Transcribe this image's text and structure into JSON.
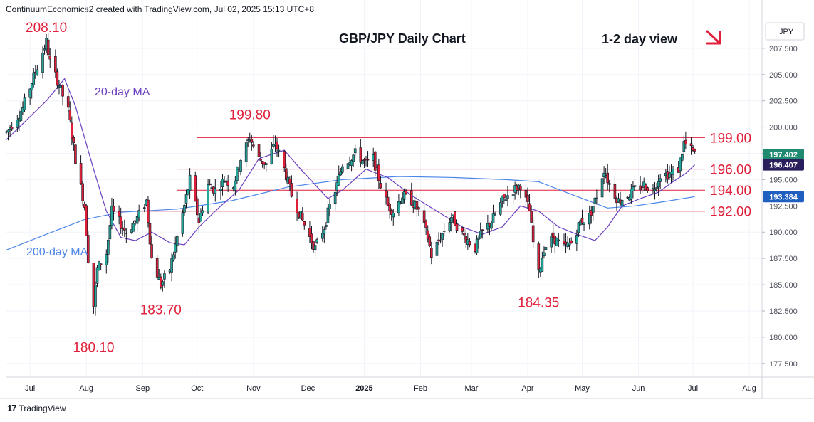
{
  "header": {
    "attribution": "ContinuumEconomics2 created with TradingView.com, Jul 02, 2025 15:13 UTC+8"
  },
  "footer": {
    "brand": "TradingView",
    "logo_text": "17"
  },
  "colors": {
    "up": "#26a69a",
    "down": "#e0203a",
    "candle": "#131722",
    "ma20": "#6b3fc0",
    "ma200": "#4a86e8",
    "level_line": "#e0203a",
    "annotation": "#e0203a",
    "grid": "#f0f3fa"
  },
  "chart_data": {
    "type": "candlestick",
    "title": "GBP/JPY Daily Chart",
    "subtitle": "1-2 day view",
    "direction_icon": "arrow-down-right-icon",
    "currency_label": "JPY",
    "x_tick_labels": [
      "Jul",
      "Aug",
      "Sep",
      "Oct",
      "Nov",
      "Dec",
      "2025",
      "Feb",
      "Mar",
      "Apr",
      "May",
      "Jun",
      "Jul",
      "Aug"
    ],
    "x_tick_dates": [
      "2024-07-01",
      "2024-08-01",
      "2024-09-01",
      "2024-10-01",
      "2024-11-01",
      "2024-12-01",
      "2025-01-01",
      "2025-02-01",
      "2025-03-01",
      "2025-04-01",
      "2025-05-01",
      "2025-06-01",
      "2025-07-01",
      "2025-08-01"
    ],
    "x_range": [
      "2024-06-18",
      "2025-08-08"
    ],
    "y_ticks": [
      "177.500",
      "180.000",
      "182.500",
      "185.000",
      "187.500",
      "190.000",
      "192.500",
      "195.000",
      "197.500",
      "200.000",
      "202.500",
      "205.000",
      "207.500"
    ],
    "y_range": [
      176.2,
      210.2
    ],
    "price_tags": [
      {
        "value": 197.402,
        "label": "197.402",
        "color": "#1f8a70"
      },
      {
        "value": 196.407,
        "label": "196.407",
        "color": "#2a1f5c"
      },
      {
        "value": 193.384,
        "label": "193.384",
        "color": "#1f5fbf"
      }
    ],
    "levels": [
      {
        "value": 199.0,
        "label": "199.00",
        "start": "2024-10-01"
      },
      {
        "value": 196.0,
        "label": "196.00",
        "start": "2024-09-20"
      },
      {
        "value": 194.0,
        "label": "194.00",
        "start": "2024-09-20"
      },
      {
        "value": 192.0,
        "label": "192.00",
        "start": "2024-08-15"
      }
    ],
    "annotations": [
      {
        "label": "208.10",
        "date": "2024-07-10",
        "value": 208.1,
        "placement": "above"
      },
      {
        "label": "180.10",
        "date": "2024-08-05",
        "value": 180.1,
        "placement": "below"
      },
      {
        "label": "183.70",
        "date": "2024-09-11",
        "value": 183.7,
        "placement": "below"
      },
      {
        "label": "199.80",
        "date": "2024-10-30",
        "value": 199.8,
        "placement": "above"
      },
      {
        "label": "184.35",
        "date": "2025-04-07",
        "value": 184.35,
        "placement": "below"
      }
    ],
    "ma_labels": [
      {
        "label": "20-day MA",
        "series": "ma20"
      },
      {
        "label": "200-day MA",
        "series": "ma200"
      }
    ],
    "close_series": [
      [
        "2024-06-18",
        199.5
      ],
      [
        "2024-06-27",
        201.8
      ],
      [
        "2024-07-03",
        204.8
      ],
      [
        "2024-07-10",
        208.1
      ],
      [
        "2024-07-12",
        206.2
      ],
      [
        "2024-07-17",
        204.0
      ],
      [
        "2024-07-22",
        201.5
      ],
      [
        "2024-07-26",
        197.0
      ],
      [
        "2024-07-31",
        192.5
      ],
      [
        "2024-08-02",
        187.5
      ],
      [
        "2024-08-05",
        183.0
      ],
      [
        "2024-08-07",
        186.5
      ],
      [
        "2024-08-12",
        188.0
      ],
      [
        "2024-08-15",
        192.0
      ],
      [
        "2024-08-19",
        191.0
      ],
      [
        "2024-08-23",
        190.0
      ],
      [
        "2024-08-28",
        191.0
      ],
      [
        "2024-09-03",
        193.0
      ],
      [
        "2024-09-06",
        187.5
      ],
      [
        "2024-09-11",
        185.0
      ],
      [
        "2024-09-16",
        186.5
      ],
      [
        "2024-09-20",
        189.5
      ],
      [
        "2024-09-24",
        192.5
      ],
      [
        "2024-09-27",
        195.0
      ],
      [
        "2024-10-02",
        191.0
      ],
      [
        "2024-10-07",
        194.5
      ],
      [
        "2024-10-11",
        194.0
      ],
      [
        "2024-10-16",
        195.0
      ],
      [
        "2024-10-21",
        194.5
      ],
      [
        "2024-10-25",
        197.0
      ],
      [
        "2024-10-30",
        199.0
      ],
      [
        "2024-11-04",
        197.0
      ],
      [
        "2024-11-08",
        196.5
      ],
      [
        "2024-11-13",
        198.5
      ],
      [
        "2024-11-18",
        196.0
      ],
      [
        "2024-11-22",
        193.5
      ],
      [
        "2024-11-27",
        191.5
      ],
      [
        "2024-12-02",
        189.5
      ],
      [
        "2024-12-05",
        188.5
      ],
      [
        "2024-12-10",
        190.5
      ],
      [
        "2024-12-13",
        192.5
      ],
      [
        "2024-12-17",
        194.5
      ],
      [
        "2024-12-20",
        196.5
      ],
      [
        "2024-12-24",
        197.0
      ],
      [
        "2024-12-27",
        197.5
      ],
      [
        "2025-01-02",
        196.5
      ],
      [
        "2025-01-06",
        197.0
      ],
      [
        "2025-01-10",
        194.5
      ],
      [
        "2025-01-14",
        192.5
      ],
      [
        "2025-01-17",
        192.0
      ],
      [
        "2025-01-22",
        193.5
      ],
      [
        "2025-01-27",
        193.0
      ],
      [
        "2025-01-31",
        192.0
      ],
      [
        "2025-02-05",
        189.5
      ],
      [
        "2025-02-07",
        187.8
      ],
      [
        "2025-02-12",
        189.5
      ],
      [
        "2025-02-18",
        191.5
      ],
      [
        "2025-02-24",
        189.8
      ],
      [
        "2025-03-03",
        188.5
      ],
      [
        "2025-03-07",
        190.0
      ],
      [
        "2025-03-12",
        191.0
      ],
      [
        "2025-03-18",
        193.0
      ],
      [
        "2025-03-24",
        194.0
      ],
      [
        "2025-03-28",
        194.5
      ],
      [
        "2025-04-02",
        192.0
      ],
      [
        "2025-04-04",
        189.0
      ],
      [
        "2025-04-07",
        186.0
      ],
      [
        "2025-04-10",
        188.5
      ],
      [
        "2025-04-15",
        189.5
      ],
      [
        "2025-04-21",
        188.5
      ],
      [
        "2025-04-25",
        189.0
      ],
      [
        "2025-04-30",
        191.0
      ],
      [
        "2025-05-05",
        191.5
      ],
      [
        "2025-05-09",
        193.5
      ],
      [
        "2025-05-13",
        196.0
      ],
      [
        "2025-05-16",
        194.5
      ],
      [
        "2025-05-21",
        193.0
      ],
      [
        "2025-05-26",
        193.5
      ],
      [
        "2025-05-30",
        194.0
      ],
      [
        "2025-06-04",
        194.5
      ],
      [
        "2025-06-09",
        194.0
      ],
      [
        "2025-06-13",
        195.5
      ],
      [
        "2025-06-18",
        195.5
      ],
      [
        "2025-06-23",
        196.0
      ],
      [
        "2025-06-26",
        198.5
      ],
      [
        "2025-06-30",
        197.8
      ],
      [
        "2025-07-02",
        197.402
      ]
    ],
    "ma20_series": [
      [
        "2024-06-18",
        198.8
      ],
      [
        "2024-07-10",
        202.5
      ],
      [
        "2024-07-20",
        204.6
      ],
      [
        "2024-07-26",
        202.0
      ],
      [
        "2024-08-05",
        196.0
      ],
      [
        "2024-08-12",
        192.0
      ],
      [
        "2024-08-20",
        189.5
      ],
      [
        "2024-08-28",
        189.2
      ],
      [
        "2024-09-06",
        190.0
      ],
      [
        "2024-09-16",
        189.0
      ],
      [
        "2024-09-24",
        188.8
      ],
      [
        "2024-10-02",
        190.5
      ],
      [
        "2024-10-14",
        192.5
      ],
      [
        "2024-10-24",
        194.0
      ],
      [
        "2024-11-04",
        197.0
      ],
      [
        "2024-11-18",
        197.8
      ],
      [
        "2024-11-27",
        196.0
      ],
      [
        "2024-12-05",
        194.5
      ],
      [
        "2024-12-12",
        193.2
      ],
      [
        "2024-12-20",
        194.0
      ],
      [
        "2025-01-02",
        196.0
      ],
      [
        "2025-01-14",
        195.2
      ],
      [
        "2025-01-27",
        193.5
      ],
      [
        "2025-02-10",
        192.0
      ],
      [
        "2025-02-24",
        190.5
      ],
      [
        "2025-03-07",
        189.8
      ],
      [
        "2025-03-18",
        190.5
      ],
      [
        "2025-03-28",
        192.5
      ],
      [
        "2025-04-07",
        192.0
      ],
      [
        "2025-04-18",
        190.5
      ],
      [
        "2025-04-28",
        189.8
      ],
      [
        "2025-05-08",
        189.2
      ],
      [
        "2025-05-15",
        190.5
      ],
      [
        "2025-05-23",
        192.5
      ],
      [
        "2025-06-02",
        193.2
      ],
      [
        "2025-06-12",
        193.8
      ],
      [
        "2025-06-20",
        194.8
      ],
      [
        "2025-06-27",
        195.6
      ],
      [
        "2025-07-02",
        196.407
      ]
    ],
    "ma200_series": [
      [
        "2024-06-18",
        188.3
      ],
      [
        "2024-07-10",
        189.8
      ],
      [
        "2024-07-31",
        191.2
      ],
      [
        "2024-08-20",
        191.9
      ],
      [
        "2024-09-20",
        192.2
      ],
      [
        "2024-10-20",
        193.0
      ],
      [
        "2024-11-20",
        194.3
      ],
      [
        "2024-12-20",
        195.0
      ],
      [
        "2025-01-20",
        195.3
      ],
      [
        "2025-02-20",
        195.2
      ],
      [
        "2025-03-20",
        195.0
      ],
      [
        "2025-04-07",
        194.8
      ],
      [
        "2025-04-25",
        193.6
      ],
      [
        "2025-05-15",
        192.3
      ],
      [
        "2025-05-30",
        192.5
      ],
      [
        "2025-06-15",
        192.9
      ],
      [
        "2025-07-02",
        193.384
      ]
    ]
  }
}
